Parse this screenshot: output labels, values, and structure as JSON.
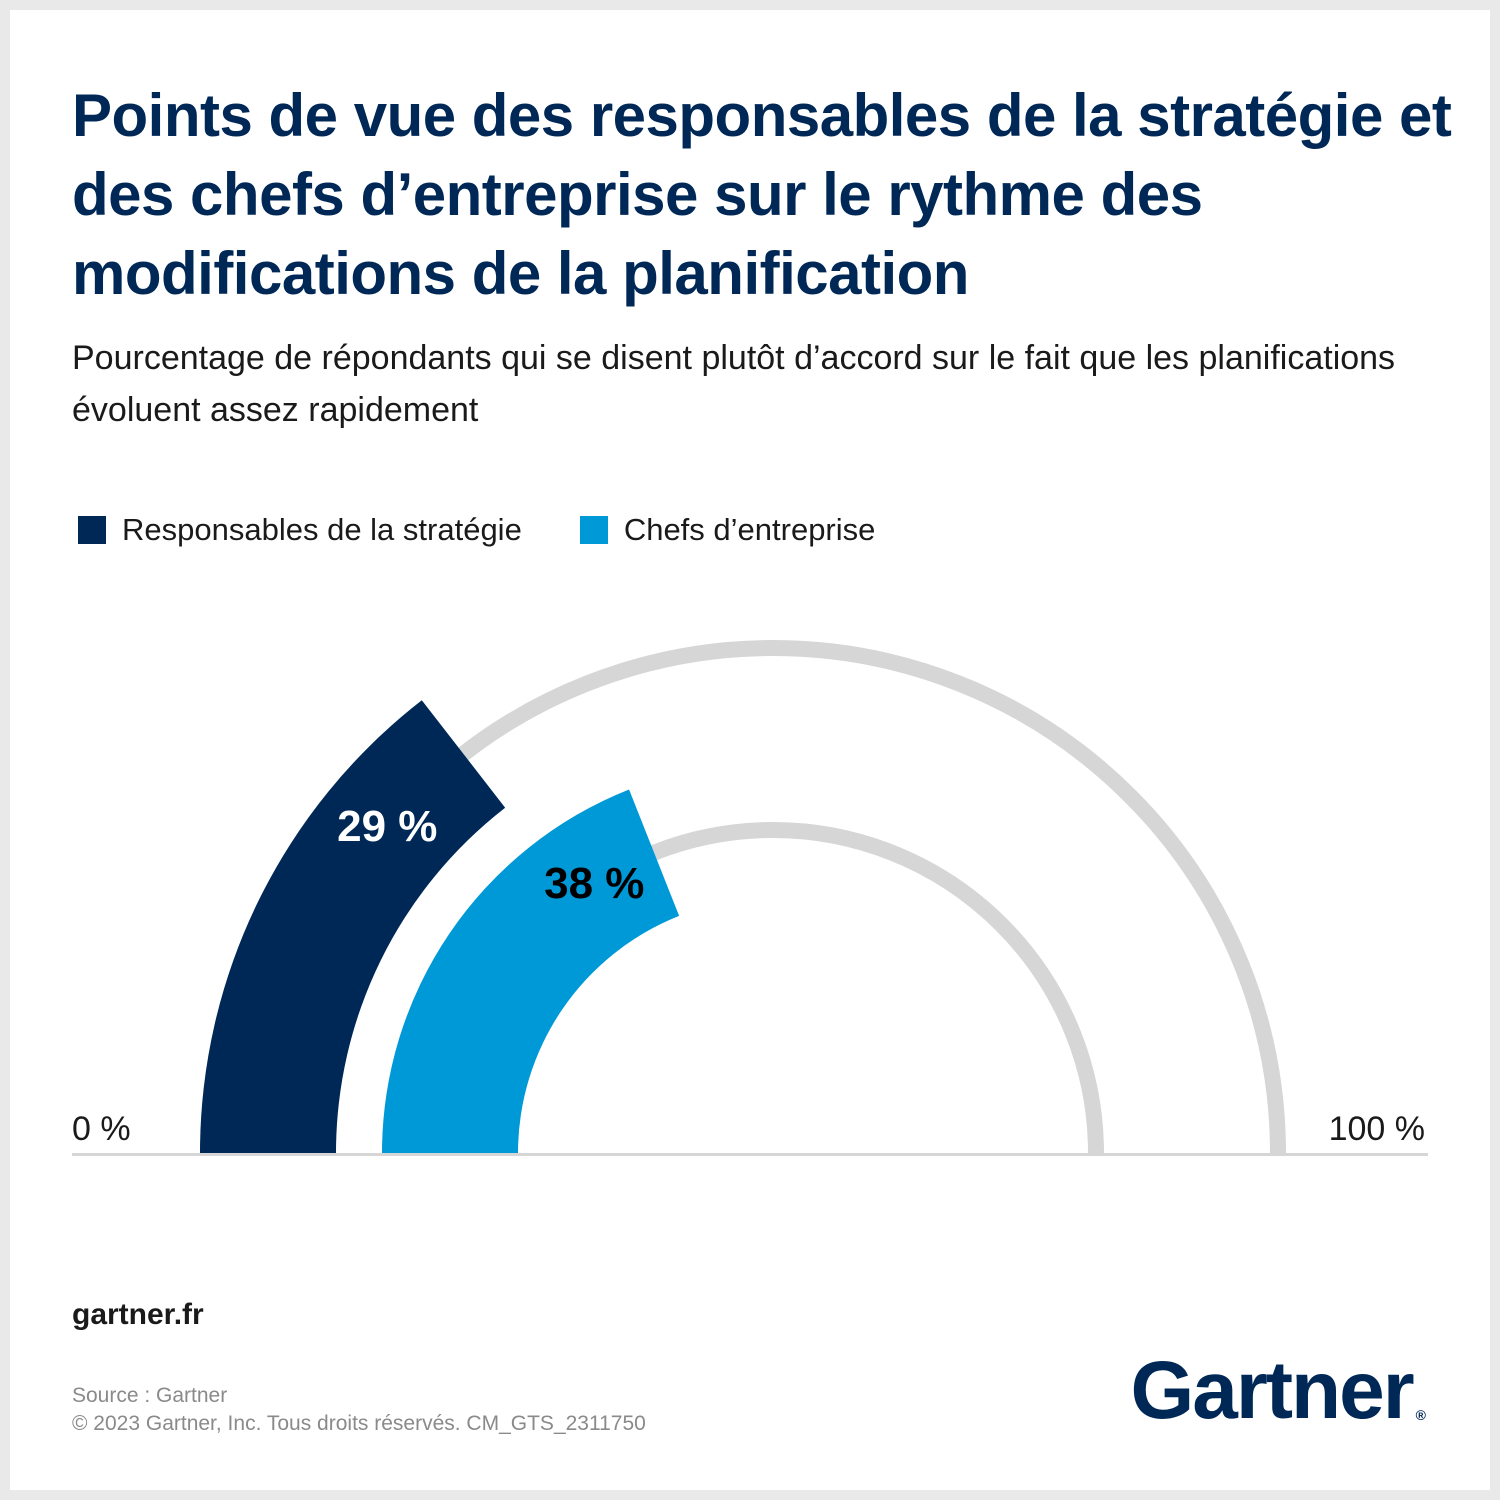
{
  "title": "Points de vue des responsables de la stratégie et des chefs d’entreprise sur le rythme des modifications de la planification",
  "subtitle": "Pourcentage de répondants qui se disent plutôt d’accord sur le fait que les planifications évoluent assez rapidement",
  "chart_data": {
    "type": "gauge",
    "min": 0,
    "max": 100,
    "min_label": "0 %",
    "max_label": "100 %",
    "series": [
      {
        "name": "Responsables de la stratégie",
        "value": 29,
        "label": "29 %",
        "color": "#002856",
        "label_color": "#ffffff"
      },
      {
        "name": "Chefs d’entreprise",
        "value": 38,
        "label": "38 %",
        "color": "#0099d8",
        "label_color": "#000000"
      }
    ],
    "track_color": "#d6d6d6",
    "baseline_color": "#d6d6d6"
  },
  "footer": {
    "website": "gartner.fr",
    "source": "Source : Gartner",
    "copyright": "© 2023 Gartner, Inc. Tous droits réservés. CM_GTS_2311750",
    "logo_text": "Gartner",
    "logo_mark": "®"
  }
}
